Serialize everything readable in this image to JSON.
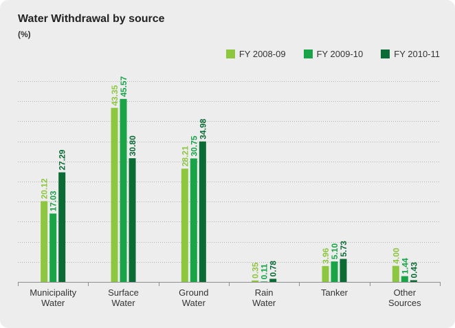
{
  "chart_data": {
    "type": "bar",
    "title": "Water Withdrawal by source",
    "subtitle": "(%)",
    "categories": [
      [
        "Municipality",
        "Water"
      ],
      [
        "Surface",
        "Water"
      ],
      [
        "Ground",
        "Water"
      ],
      [
        "Rain",
        "Water"
      ],
      [
        "Tanker"
      ],
      [
        "Other",
        "Sources"
      ]
    ],
    "series": [
      {
        "name": "FY 2008-09",
        "color": "#8dc63f",
        "values": [
          20.12,
          43.35,
          28.21,
          0.35,
          3.96,
          4.0
        ],
        "labels": [
          "20.12",
          "43.35",
          "28.21",
          "0.35",
          "3.96",
          "4.00"
        ]
      },
      {
        "name": "FY 2009-10",
        "color": "#19a448",
        "values": [
          17.03,
          45.57,
          30.75,
          0.11,
          5.1,
          1.44
        ],
        "labels": [
          "17.03",
          "45.57",
          "30.75",
          "0.11",
          "5.10",
          "1.44"
        ]
      },
      {
        "name": "FY 2010-11",
        "color": "#0b6b35",
        "values": [
          27.29,
          30.8,
          34.98,
          0.78,
          5.73,
          0.43
        ],
        "labels": [
          "27.29",
          "30.80",
          "34.98",
          "0.78",
          "5.73",
          "0.43"
        ]
      }
    ],
    "ylim": [
      0,
      50
    ],
    "grid": true,
    "legend_position": "top-right"
  }
}
